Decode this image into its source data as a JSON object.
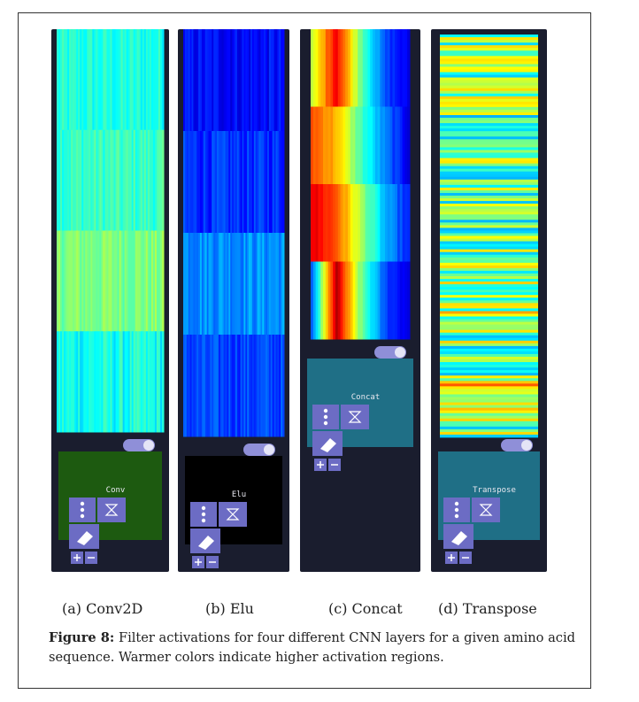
{
  "panels": [
    {
      "id": "a",
      "layer": "Conv",
      "subcaption": "(a) Conv2D",
      "palette": "conv"
    },
    {
      "id": "b",
      "layer": "Elu",
      "subcaption": "(b) Elu",
      "palette": "elu"
    },
    {
      "id": "c",
      "layer": "Concat",
      "subcaption": "(c) Concat",
      "palette": "concat"
    },
    {
      "id": "d",
      "layer": "Transpose",
      "subcaption": "(d) Transpose",
      "palette": "transpose"
    }
  ],
  "caption": {
    "label": "Figure 8:",
    "text": " Filter activations for four different CNN layers for a given amino acid sequence. Warmer colors indicate higher activation regions."
  },
  "colors": {
    "panel_bg": "#1a1d2e",
    "conv_node": "#1d5a10",
    "elu_node": "#000000",
    "concat_node": "#1f6f86",
    "transpose_node": "#1f6f86",
    "toggle": "#8f8fd8",
    "button": "#6c6cc4"
  }
}
